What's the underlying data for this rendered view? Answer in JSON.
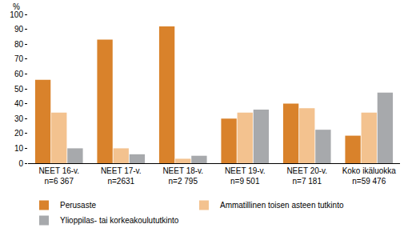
{
  "chart_data": {
    "type": "bar",
    "y_label": "%",
    "categories": [
      "NEET 16-v.\nn=6 367",
      "NEET 17-v.\nn=2631",
      "NEET 18-v.\nn=2 795",
      "NEET 19-v.\nn=9 501",
      "NEET 20-v.\nn=7 181",
      "Koko ikäluokka\nn=59 476"
    ],
    "series": [
      {
        "name": "Perusaste",
        "color": "#d9822b",
        "values": [
          56,
          83,
          92,
          30,
          40,
          18.5
        ]
      },
      {
        "name": "Ammatillinen toisen asteen tutkinto",
        "color": "#f3c28f",
        "values": [
          34,
          10,
          3,
          34,
          37,
          34
        ]
      },
      {
        "name": "Ylioppilas- tai korkeakoulututkinto",
        "color": "#a7a9ac",
        "values": [
          10,
          6,
          5,
          36,
          22.5,
          47.5
        ]
      }
    ],
    "ylim": [
      0,
      100
    ],
    "yticks": [
      0,
      10,
      20,
      30,
      40,
      50,
      60,
      70,
      80,
      90,
      100
    ],
    "grid": false,
    "legend": "bottom"
  }
}
